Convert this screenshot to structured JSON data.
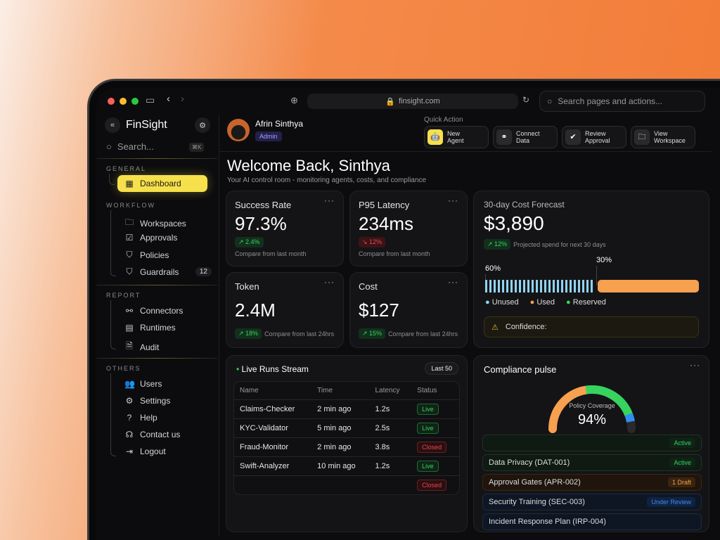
{
  "browser": {
    "url": "finsight.com",
    "search_placeholder": "Search pages and actions..."
  },
  "sidebar": {
    "brand": "FinSight",
    "search_placeholder": "Search...",
    "shortcut": "⌘K",
    "sections": [
      {
        "label": "GENERAL",
        "items": [
          {
            "label": "Dashboard",
            "icon": "grid-icon",
            "active": true
          }
        ]
      },
      {
        "label": "WORKFLOW",
        "items": [
          {
            "label": "Workspaces",
            "icon": "folder-icon"
          },
          {
            "label": "Approvals",
            "icon": "checkbox-icon"
          },
          {
            "label": "Policies",
            "icon": "shield-icon"
          },
          {
            "label": "Guardrails",
            "icon": "shield-icon",
            "badge": "12"
          }
        ]
      },
      {
        "label": "REPORT",
        "items": [
          {
            "label": "Connectors",
            "icon": "plug-icon"
          },
          {
            "label": "Runtimes",
            "icon": "server-icon"
          },
          {
            "label": "Audit",
            "icon": "document-icon"
          }
        ]
      },
      {
        "label": "OTHERS",
        "items": [
          {
            "label": "Users",
            "icon": "users-icon"
          },
          {
            "label": "Settings",
            "icon": "gear-icon"
          },
          {
            "label": "Help",
            "icon": "help-icon"
          },
          {
            "label": "Contact us",
            "icon": "headset-icon"
          },
          {
            "label": "Logout",
            "icon": "logout-icon"
          }
        ]
      }
    ]
  },
  "user": {
    "name": "Afrin Sinthya",
    "role": "Admin"
  },
  "quick_action": {
    "label": "Quick Action",
    "actions": [
      {
        "label1": "New",
        "label2": "Agent"
      },
      {
        "label1": "Connect",
        "label2": "Data"
      },
      {
        "label1": "Review",
        "label2": "Approval"
      },
      {
        "label1": "View",
        "label2": "Workspace"
      }
    ]
  },
  "welcome": {
    "title": "Welcome Back, Sinthya",
    "subtitle": "Your AI control room - monitoring agents, costs, and compliance"
  },
  "stats": [
    {
      "title": "Success Rate",
      "value": "97.3%",
      "trend": "2.4%",
      "dir": "up",
      "compare": "Compare from last month"
    },
    {
      "title": "P95 Latency",
      "value": "234ms",
      "trend": "12%",
      "dir": "down",
      "compare": "Compare from last month"
    },
    {
      "title": "Token",
      "value": "2.4M",
      "trend": "18%",
      "dir": "up",
      "compare": "Compare from last 24hrs"
    },
    {
      "title": "Cost",
      "value": "$127",
      "trend": "15%",
      "dir": "up",
      "compare": "Compare from last 24hrs"
    }
  ],
  "forecast": {
    "title": "30-day Cost Forecast",
    "value": "$3,890",
    "trend": "12%",
    "caption": "Projected spend for next 30 days",
    "unused_pct": "60%",
    "used_pct": "30%",
    "legend": [
      "Unused",
      "Used",
      "Reserved"
    ],
    "confidence_label": "Confidence:",
    "colors": {
      "unused": "#8fd3f4",
      "used": "#f7a04f",
      "reserved": "#37d35f"
    }
  },
  "live_runs": {
    "title": "Live Runs Stream",
    "filter": "Last 50",
    "columns": [
      "Name",
      "Time",
      "Latency",
      "Status"
    ],
    "rows": [
      [
        "Claims-Checker",
        "2 min ago",
        "1.2s",
        "Live"
      ],
      [
        "KYC-Validator",
        "5 min ago",
        "2.5s",
        "Live"
      ],
      [
        "Fraud-Monitor",
        "2 min ago",
        "3.8s",
        "Closed"
      ],
      [
        "Swift-Analyzer",
        "10 min ago",
        "1.2s",
        "Live"
      ],
      [
        "",
        "",
        "",
        "Closed"
      ]
    ]
  },
  "compliance": {
    "title": "Compliance pulse",
    "gauge_label": "Policy Coverage",
    "gauge_value": "94%",
    "coverage": 94,
    "policies": [
      {
        "name": "",
        "status": "Active",
        "tone": "green"
      },
      {
        "name": "Data Privacy (DAT-001)",
        "status": "Active",
        "tone": "green"
      },
      {
        "name": "Approval Gates (APR-002)",
        "status": "1 Draft",
        "tone": "orange"
      },
      {
        "name": "Security Training (SEC-003)",
        "status": "Under Review",
        "tone": "blue"
      },
      {
        "name": "Incident Response Plan (IRP-004)",
        "status": "",
        "tone": "blue"
      }
    ]
  }
}
